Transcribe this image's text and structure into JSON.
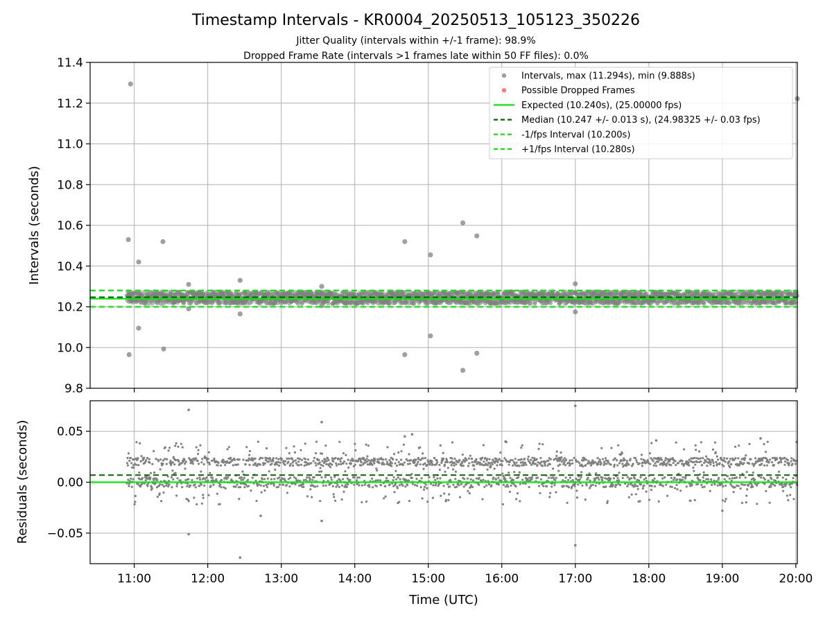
{
  "figure": {
    "title": "Timestamp Intervals - KR0004_20250513_105123_350226",
    "subtitle1": "Jitter Quality (intervals within +/-1 frame): 98.9%",
    "subtitle2": "Dropped Frame Rate (intervals >1 frames late within 50 FF files): 0.0%"
  },
  "colors": {
    "points": "#808080",
    "dropped": "#ff4d4d",
    "expected": "#00ee00",
    "median": "#006400",
    "fps_band": "#00ee00",
    "grid": "#b0b0b0"
  },
  "chart_data": [
    {
      "type": "scatter",
      "panel": "top",
      "ylabel": "Intervals (seconds)",
      "ylim": [
        9.8,
        11.4
      ],
      "yticks": [
        "9.8",
        "10.0",
        "10.2",
        "10.4",
        "10.6",
        "10.8",
        "11.0",
        "11.2",
        "11.4"
      ],
      "xlim_hours": [
        10.4,
        20.02
      ],
      "grid": true,
      "legend_position": "top-right",
      "legend": [
        "Intervals, max (11.294s), min (9.888s)",
        "Possible Dropped Frames",
        "Expected (10.240s), (25.00000 fps)",
        "Median (10.247 +/- 0.013 s), (24.98325 +/- 0.03 fps)",
        "-1/fps Interval (10.200s)",
        "+1/fps Interval (10.280s)"
      ],
      "lines": {
        "expected": 10.24,
        "median": 10.247,
        "minus_fps": 10.2,
        "plus_fps": 10.28
      },
      "band": {
        "start": 10.9,
        "end": 20.02,
        "low": 10.215,
        "high": 10.275
      },
      "outliers": [
        [
          10.92,
          10.53
        ],
        [
          10.95,
          11.294
        ],
        [
          10.93,
          9.965
        ],
        [
          11.06,
          10.42
        ],
        [
          11.06,
          10.095
        ],
        [
          11.39,
          10.52
        ],
        [
          11.4,
          9.993
        ],
        [
          11.74,
          10.31
        ],
        [
          11.74,
          10.19
        ],
        [
          12.44,
          10.33
        ],
        [
          12.44,
          10.165
        ],
        [
          13.55,
          10.3
        ],
        [
          13.55,
          10.205
        ],
        [
          14.68,
          10.52
        ],
        [
          14.68,
          9.965
        ],
        [
          15.03,
          10.455
        ],
        [
          15.03,
          10.057
        ],
        [
          15.47,
          10.612
        ],
        [
          15.47,
          9.888
        ],
        [
          15.66,
          10.548
        ],
        [
          15.66,
          9.972
        ],
        [
          17.0,
          10.313
        ],
        [
          17.0,
          10.175
        ],
        [
          20.02,
          11.222
        ]
      ]
    },
    {
      "type": "scatter",
      "panel": "bottom",
      "ylabel": "Residuals (seconds)",
      "xlabel": "Time (UTC)",
      "ylim": [
        -0.08,
        0.08
      ],
      "yticks": [
        "−0.05",
        "0.00",
        "0.05"
      ],
      "ytick_values": [
        -0.05,
        0.0,
        0.05
      ],
      "xticks": [
        "11:00",
        "12:00",
        "13:00",
        "14:00",
        "15:00",
        "16:00",
        "17:00",
        "18:00",
        "19:00",
        "20:00"
      ],
      "xtick_hours": [
        11,
        12,
        13,
        14,
        15,
        16,
        17,
        18,
        19,
        20
      ],
      "xlim_hours": [
        10.4,
        20.02
      ],
      "grid": true,
      "lines": {
        "expected": 0.0,
        "median": 0.007
      },
      "outliers": [
        [
          11.74,
          0.071
        ],
        [
          11.74,
          -0.051
        ],
        [
          12.44,
          -0.074
        ],
        [
          13.55,
          0.059
        ],
        [
          13.55,
          -0.038
        ],
        [
          14.68,
          0.045
        ],
        [
          14.78,
          0.047
        ],
        [
          17.0,
          0.075
        ],
        [
          17.0,
          -0.062
        ],
        [
          12.72,
          -0.033
        ],
        [
          16.05,
          0.04
        ],
        [
          18.1,
          0.041
        ],
        [
          19.52,
          0.043
        ],
        [
          19.0,
          -0.028
        ]
      ]
    }
  ]
}
